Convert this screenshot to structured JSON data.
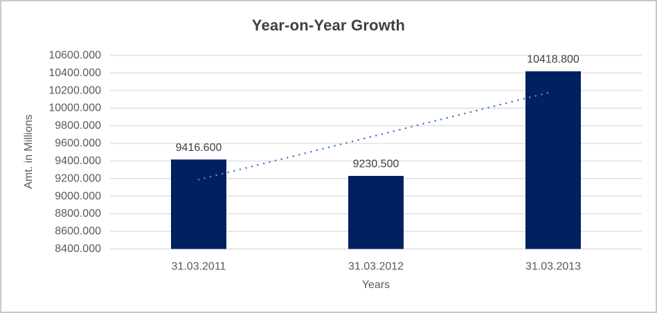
{
  "window": {
    "background": "#ffffff",
    "border_color": "#c9c9c9"
  },
  "chart_data": {
    "type": "bar",
    "title": "Year-on-Year Growth",
    "xlabel": "Years",
    "ylabel": "Amt. in Millions",
    "categories": [
      "31.03.2011",
      "31.03.2012",
      "31.03.2013"
    ],
    "values": [
      9416.6,
      9230.5,
      10418.8
    ],
    "data_labels": [
      "9416.600",
      "9230.500",
      "10418.800"
    ],
    "ylim": [
      8400,
      10600
    ],
    "ytick_step": 200,
    "ytick_labels": [
      "10600.000",
      "10400.000",
      "10200.000",
      "10000.000",
      "9800.000",
      "9600.000",
      "9400.000",
      "9200.000",
      "9000.000",
      "8800.000",
      "8600.000",
      "8400.000"
    ],
    "grid": true,
    "legend": "none",
    "trendline": {
      "type": "linear",
      "style": "dotted"
    },
    "colors": {
      "bar": "#002060",
      "trendline": "#4a86c9",
      "gridline": "#d9d9d9",
      "axis_line": "#d9d9d9",
      "tick_text": "#595959",
      "axis_title_text": "#595959",
      "data_label_text": "#404040",
      "title_text": "#404040"
    }
  }
}
